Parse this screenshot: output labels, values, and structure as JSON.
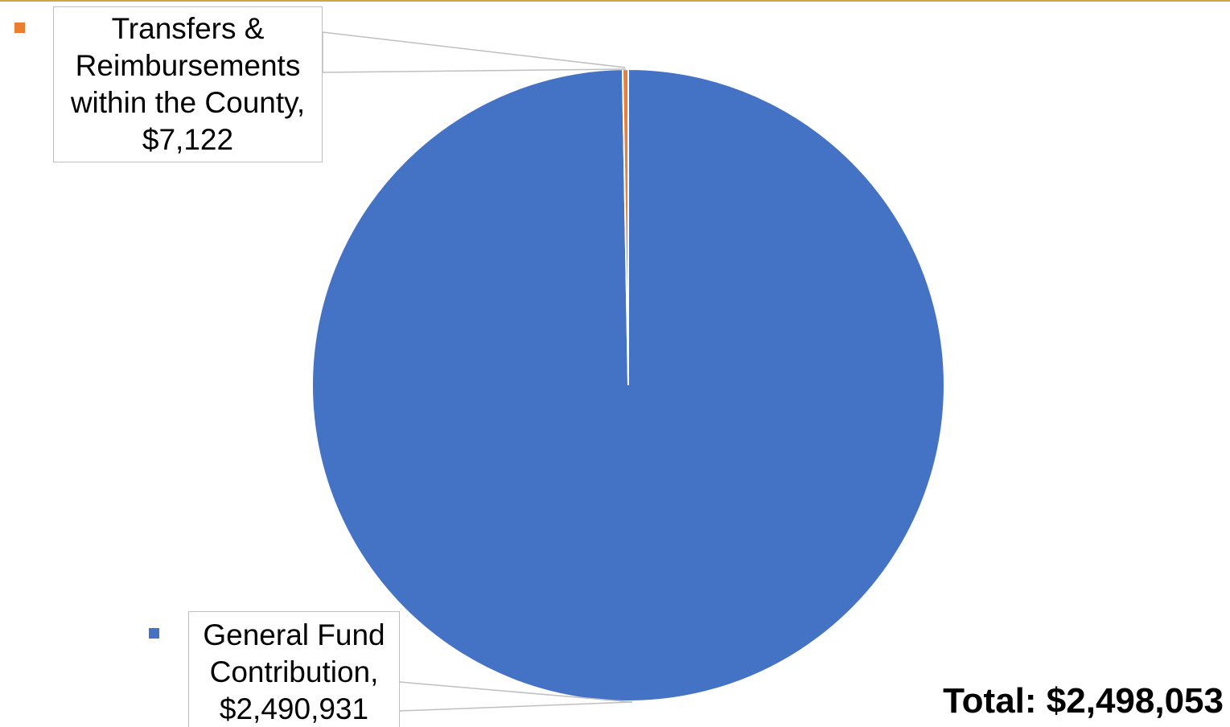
{
  "chart_data": {
    "type": "pie",
    "slices": [
      {
        "name": "General Fund Contribution",
        "value": 2490931,
        "color": "#4472c4",
        "label_lines": [
          "General Fund",
          "Contribution,",
          "$2,490,931"
        ]
      },
      {
        "name": "Transfers & Reimbursements within the County",
        "value": 7122,
        "color": "#ed7d31",
        "label_lines": [
          "Transfers &",
          "Reimbursements",
          "within the County,",
          "$7,122"
        ]
      }
    ],
    "start_angle": "12 o'clock, clockwise",
    "total_label": "Total: $2,498,053"
  }
}
